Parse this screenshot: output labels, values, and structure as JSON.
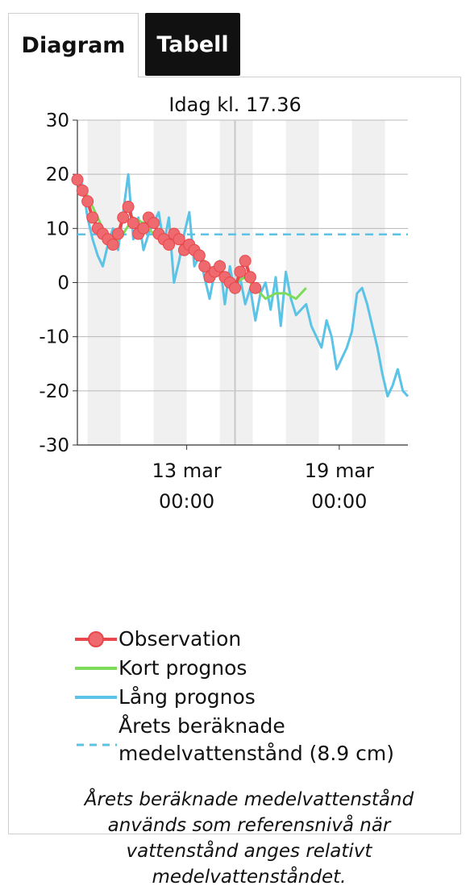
{
  "tabs": [
    {
      "label": "Diagram",
      "active": true
    },
    {
      "label": "Tabell",
      "active": false
    }
  ],
  "chart_data": {
    "type": "line",
    "title": "Idag kl. 17.36",
    "ylim": [
      -30,
      30
    ],
    "yticks": [
      30,
      20,
      10,
      0,
      -10,
      -20,
      -30
    ],
    "xrange_days": [
      "2024-03-08",
      "2024-03-21"
    ],
    "xticks": [
      {
        "line1": "13 mar",
        "line2": "00:00",
        "date": "13 mar 00:00"
      },
      {
        "line1": "19 mar",
        "line2": "00:00",
        "date": "19 mar 00:00"
      }
    ],
    "now_label": "Idag kl. 17.36",
    "reference_level": 8.9,
    "series": [
      {
        "name": "Observation",
        "color": "#e8474c",
        "x": [
          0.0,
          0.2,
          0.4,
          0.6,
          0.8,
          1.0,
          1.2,
          1.4,
          1.6,
          1.8,
          2.0,
          2.2,
          2.4,
          2.6,
          2.8,
          3.0,
          3.2,
          3.4,
          3.6,
          3.8,
          4.0,
          4.2,
          4.4,
          4.6,
          4.8,
          5.0,
          5.2,
          5.4,
          5.6,
          5.8,
          6.0,
          6.2,
          6.4,
          6.6,
          6.8,
          7.0
        ],
        "values": [
          19,
          17,
          15,
          12,
          10,
          9,
          8,
          7,
          9,
          12,
          14,
          11,
          9,
          10,
          12,
          11,
          9,
          8,
          7,
          9,
          8,
          6,
          7,
          6,
          5,
          3,
          1,
          2,
          3,
          1,
          0,
          -1,
          2,
          4,
          1,
          -1
        ]
      },
      {
        "name": "Kort prognos",
        "color": "#7cdc5a",
        "x": [
          0.2,
          0.6,
          1.0,
          1.4,
          1.8,
          2.2,
          2.6,
          3.0,
          3.4,
          3.8,
          4.2,
          4.6,
          5.0,
          5.4,
          5.8,
          6.2,
          6.6,
          7.0,
          7.4,
          7.8,
          8.2,
          8.6,
          9.0
        ],
        "values": [
          18,
          14,
          10,
          7,
          9,
          12,
          11,
          9,
          8,
          9,
          7,
          6,
          4,
          2,
          1,
          0,
          1,
          -1,
          -3,
          -2,
          -2,
          -3,
          -1
        ]
      },
      {
        "name": "Lång prognos",
        "color": "#5bc3e6",
        "x": [
          0.0,
          0.2,
          0.4,
          0.6,
          0.8,
          1.0,
          1.2,
          1.4,
          1.6,
          1.8,
          2.0,
          2.2,
          2.4,
          2.6,
          2.8,
          3.0,
          3.2,
          3.4,
          3.6,
          3.8,
          4.0,
          4.2,
          4.4,
          4.6,
          4.8,
          5.0,
          5.2,
          5.4,
          5.6,
          5.8,
          6.0,
          6.2,
          6.4,
          6.6,
          6.8,
          7.0,
          7.2,
          7.4,
          7.6,
          7.8,
          8.0,
          8.2,
          8.4,
          8.6,
          8.8,
          9.0,
          9.2,
          9.4,
          9.6,
          9.8,
          10.0,
          10.2,
          10.4,
          10.6,
          10.8,
          11.0,
          11.2,
          11.4,
          11.6,
          11.8,
          12.0,
          12.2,
          12.4,
          12.6,
          12.8,
          13.0
        ],
        "values": [
          20,
          18,
          12,
          8,
          5,
          3,
          7,
          10,
          6,
          13,
          20,
          8,
          12,
          6,
          9,
          11,
          13,
          7,
          12,
          0,
          4,
          9,
          13,
          3,
          5,
          1,
          -3,
          2,
          4,
          -4,
          3,
          -2,
          1,
          -4,
          -1,
          -7,
          -2,
          0,
          -5,
          1,
          -8,
          2,
          -3,
          -6,
          -5,
          -4,
          -8,
          -10,
          -12,
          -7,
          -10,
          -16,
          -14,
          -12,
          -9,
          -2,
          -1,
          -4,
          -8,
          -12,
          -17,
          -21,
          -19,
          -16,
          -20,
          -21
        ]
      }
    ],
    "legend": [
      {
        "name": "Observation"
      },
      {
        "name": "Kort prognos"
      },
      {
        "name": "Lång prognos"
      },
      {
        "name": "Årets beräknade medelvattenstånd (8.9 cm)",
        "line1": "Årets beräknade",
        "line2": "medelvattenstånd (8.9 cm)"
      }
    ]
  },
  "note": "Årets beräknade medelvattenstånd används som referensnivå när vattenstånd anges relativt medelvattenståndet."
}
